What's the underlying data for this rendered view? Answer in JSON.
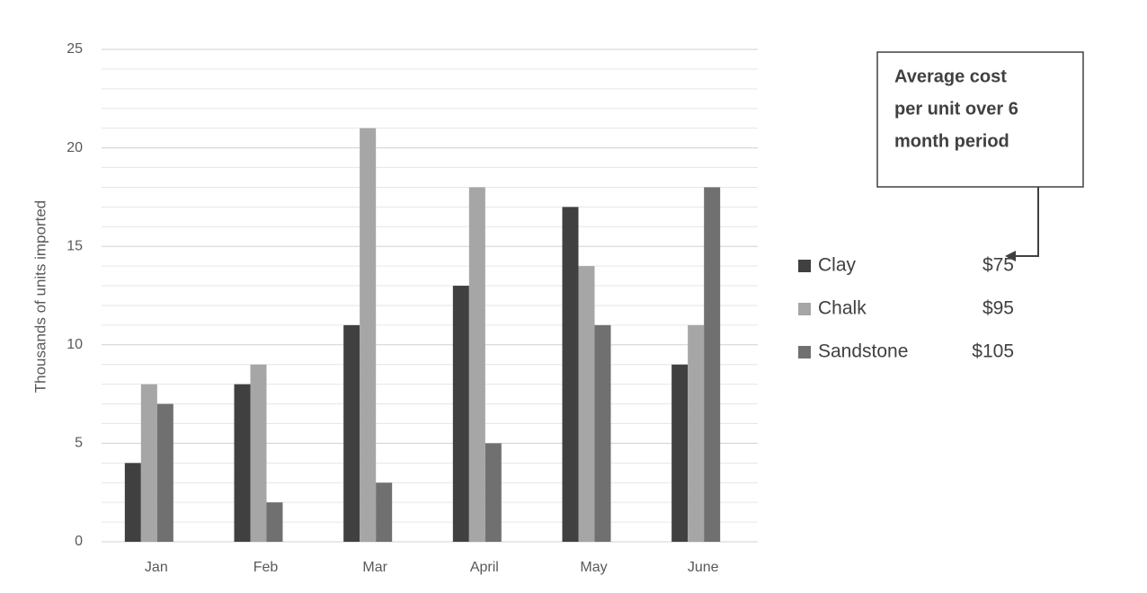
{
  "chart_data": {
    "type": "bar",
    "y_label": "Thousands of units imported",
    "categories": [
      "Jan",
      "Feb",
      "Mar",
      "April",
      "May",
      "June"
    ],
    "series": [
      {
        "name": "Clay",
        "cost": "$75",
        "color": "#404040",
        "values": [
          4,
          8,
          11,
          13,
          17,
          9
        ]
      },
      {
        "name": "Chalk",
        "cost": "$95",
        "color": "#a6a6a6",
        "values": [
          8,
          9,
          21,
          18,
          14,
          11
        ]
      },
      {
        "name": "Sandstone",
        "cost": "$105",
        "color": "#707070",
        "values": [
          7,
          2,
          3,
          5,
          11,
          18
        ]
      }
    ],
    "ylim": [
      0,
      25
    ],
    "yticks": [
      0,
      5,
      10,
      15,
      20,
      25
    ],
    "minor_yticks": [
      1,
      2,
      3,
      4,
      6,
      7,
      8,
      9,
      11,
      12,
      13,
      14,
      16,
      17,
      18,
      19,
      21,
      22,
      23,
      24
    ],
    "grid": true,
    "annotation": [
      "Average cost",
      "per unit over 6",
      "month period"
    ]
  }
}
